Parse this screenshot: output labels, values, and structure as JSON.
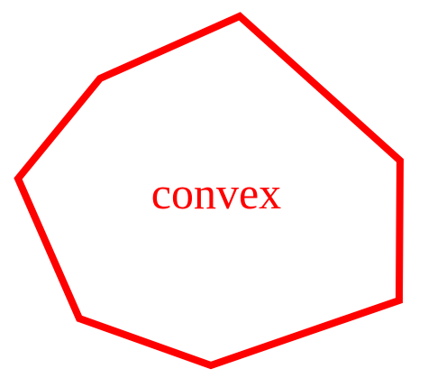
{
  "figure": {
    "label": "convex",
    "color": "#ff0000",
    "shape": "convex-polygon"
  }
}
